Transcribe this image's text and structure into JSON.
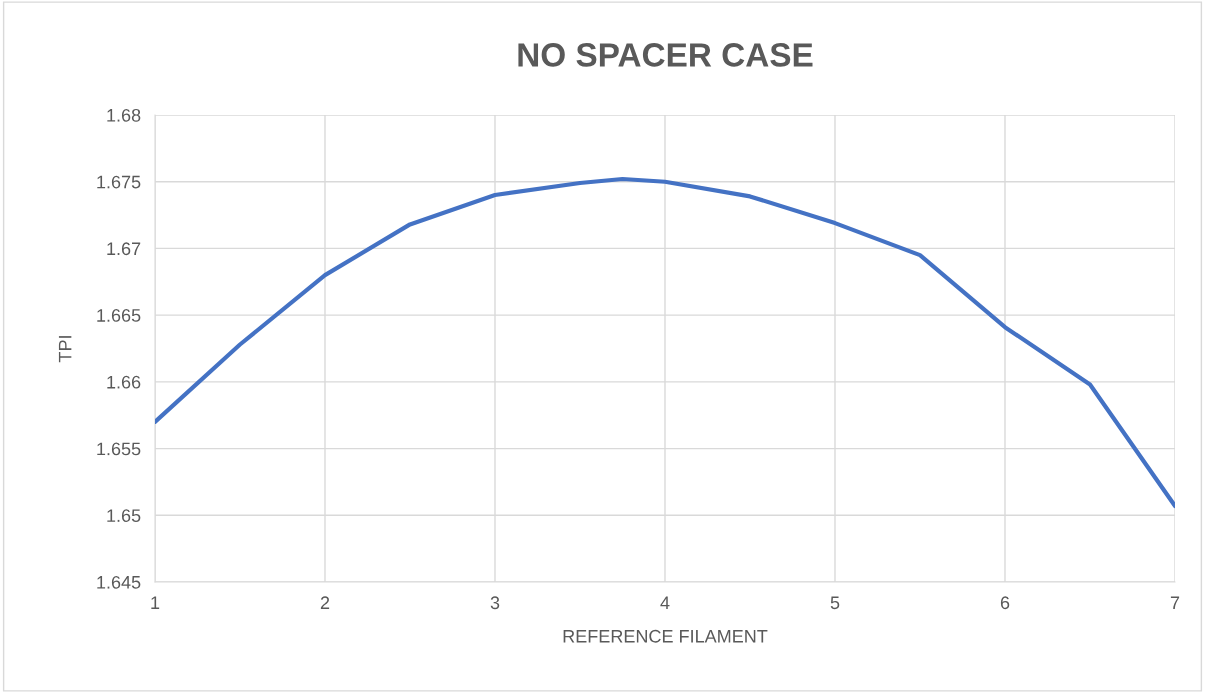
{
  "chart_data": {
    "type": "line",
    "title": "NO SPACER CASE",
    "xlabel": "REFERENCE FILAMENT",
    "ylabel": "TPI",
    "x": [
      1,
      1.5,
      2,
      2.5,
      3,
      3.5,
      3.75,
      4,
      4.5,
      5,
      5.5,
      6,
      6.5,
      7
    ],
    "series": [
      {
        "color": "#4472c4",
        "values": [
          1.657,
          1.6628,
          1.668,
          1.6718,
          1.674,
          1.6749,
          1.6752,
          1.675,
          1.6739,
          1.6719,
          1.6695,
          1.6641,
          1.6598,
          1.6507
        ]
      }
    ],
    "xlim": [
      1,
      7
    ],
    "xticks": [
      1,
      2,
      3,
      4,
      5,
      6,
      7
    ],
    "ylim": [
      1.645,
      1.68
    ],
    "yticks": [
      1.645,
      1.65,
      1.655,
      1.66,
      1.665,
      1.67,
      1.675,
      1.68
    ],
    "grid": true,
    "marker": "none",
    "line_style": "solid",
    "legend": false
  }
}
